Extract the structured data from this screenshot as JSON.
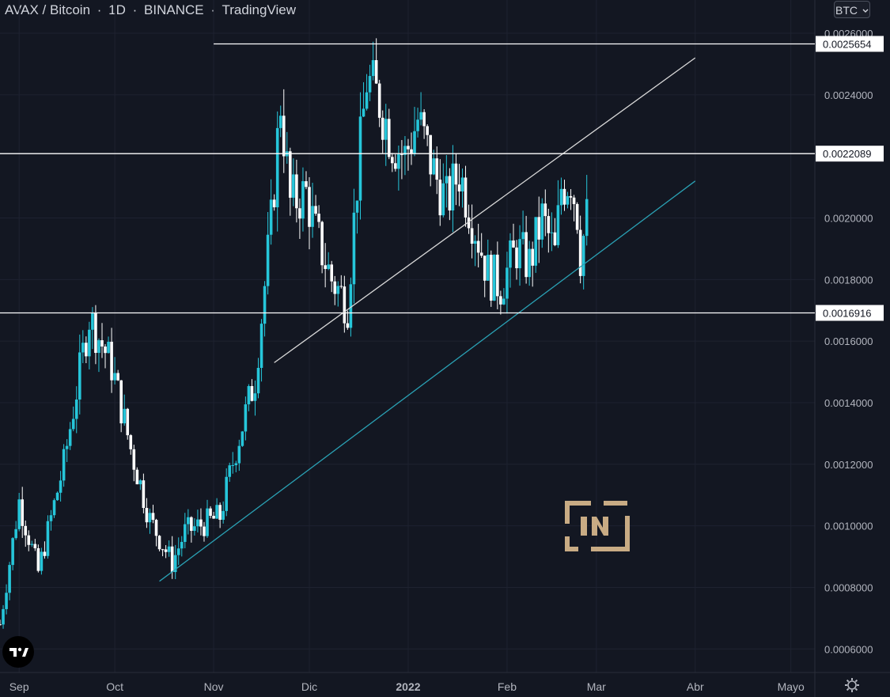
{
  "header": {
    "pair": "AVAX / Bitcoin",
    "sep1": "·",
    "interval": "1D",
    "sep2": "·",
    "exchange": "BINANCE",
    "sep3": "·",
    "platform": "TradingView"
  },
  "currency_button": "BTC",
  "icons": {
    "currency_dropdown": "chevron-down-icon",
    "logo": "beincrypto-logo",
    "brand": "tradingview-logo",
    "settings": "gear-icon"
  },
  "colors": {
    "background": "#131722",
    "grid": "#1e2230",
    "up_candle": "#26c6da",
    "down_candle": "#ffffff",
    "support_line": "#2aa1b4",
    "channel_line": "#d9d9d9",
    "level_line": "#ffffff",
    "axis_text": "#b2b5be"
  },
  "chart_data": {
    "type": "candlestick",
    "title": "AVAX / Bitcoin",
    "ylim": [
      0.00048,
      0.0026
    ],
    "y_ticks": [
      "0.0026000",
      "0.0024000",
      "0.0022089",
      "0.0020000",
      "0.0018000",
      "0.0016916",
      "0.0016000",
      "0.0014000",
      "0.0012000",
      "0.0010000",
      "0.0008000",
      "0.0006000"
    ],
    "x_ticks": [
      "Sep",
      "Oct",
      "Nov",
      "Dic",
      "2022",
      "Feb",
      "Mar",
      "Abr",
      "Mayo"
    ],
    "x_range": [
      "2021-08-26",
      "2022-05-11"
    ],
    "level_labels": [
      "0.0025654",
      "0.0022089",
      "0.0016916"
    ],
    "horizontal_levels": [
      {
        "value": 0.0025654,
        "from": "2021-11-01"
      },
      {
        "value": 0.0022089,
        "from": "2021-08-26"
      },
      {
        "value": 0.0016916,
        "from": "2021-08-26"
      }
    ],
    "trend_lines": [
      {
        "name": "support",
        "points": [
          [
            "2021-10-15",
            0.00082
          ],
          [
            "2022-04-01",
            0.00212
          ]
        ]
      },
      {
        "name": "channel",
        "points": [
          [
            "2021-11-20",
            0.00153
          ],
          [
            "2022-04-01",
            0.00252
          ]
        ]
      }
    ],
    "anchors": [
      [
        "2021-08-26",
        0.00068
      ],
      [
        "2021-09-01",
        0.00108
      ],
      [
        "2021-09-07",
        0.00085
      ],
      [
        "2021-09-15",
        0.0012
      ],
      [
        "2021-09-23",
        0.00168
      ],
      [
        "2021-09-30",
        0.00152
      ],
      [
        "2021-10-06",
        0.00125
      ],
      [
        "2021-10-12",
        0.00102
      ],
      [
        "2021-10-19",
        0.00088
      ],
      [
        "2021-10-23",
        0.00098
      ],
      [
        "2021-11-03",
        0.00103
      ],
      [
        "2021-11-08",
        0.00125
      ],
      [
        "2021-11-14",
        0.00148
      ],
      [
        "2021-11-19",
        0.00198
      ],
      [
        "2021-11-22",
        0.00238
      ],
      [
        "2021-11-25",
        0.00205
      ],
      [
        "2021-11-30",
        0.00208
      ],
      [
        "2021-12-03",
        0.00195
      ],
      [
        "2021-12-08",
        0.0018
      ],
      [
        "2021-12-13",
        0.00172
      ],
      [
        "2021-12-16",
        0.00212
      ],
      [
        "2021-12-19",
        0.00245
      ],
      [
        "2021-12-23",
        0.00238
      ],
      [
        "2021-12-27",
        0.00225
      ],
      [
        "2021-12-31",
        0.0022
      ],
      [
        "2022-01-04",
        0.00232
      ],
      [
        "2022-01-09",
        0.00215
      ],
      [
        "2022-01-13",
        0.00205
      ],
      [
        "2022-01-17",
        0.00215
      ],
      [
        "2022-01-22",
        0.00197
      ],
      [
        "2022-01-26",
        0.00182
      ],
      [
        "2022-01-30",
        0.00178
      ],
      [
        "2022-02-04",
        0.0019
      ],
      [
        "2022-02-08",
        0.00185
      ],
      [
        "2022-02-12",
        0.002
      ],
      [
        "2022-02-16",
        0.00188
      ],
      [
        "2022-02-18",
        0.0021
      ],
      [
        "2022-02-21",
        0.00213
      ],
      [
        "2022-02-23",
        0.00202
      ],
      [
        "2022-02-24",
        0.00188
      ],
      [
        "2022-02-26",
        0.002
      ]
    ]
  }
}
